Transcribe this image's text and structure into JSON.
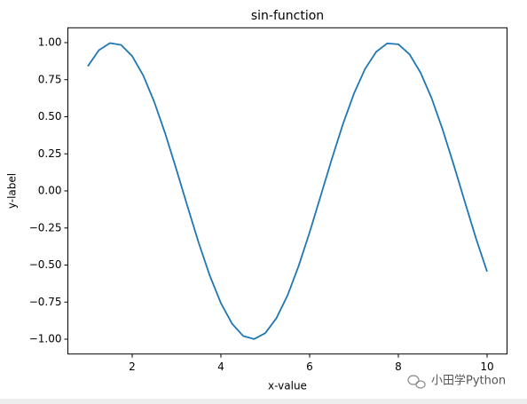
{
  "chart_data": {
    "type": "line",
    "title": "sin-function",
    "x_label": "x-value",
    "y_label": "y-label",
    "x": [
      1,
      1.25,
      1.5,
      1.75,
      2,
      2.25,
      2.5,
      2.75,
      3,
      3.25,
      3.5,
      3.75,
      4,
      4.25,
      4.5,
      4.75,
      5,
      5.25,
      5.5,
      5.75,
      6,
      6.25,
      6.5,
      6.75,
      7,
      7.25,
      7.5,
      7.75,
      8,
      8.25,
      8.5,
      8.75,
      9,
      9.25,
      9.5,
      9.75,
      10
    ],
    "series": [
      {
        "color": "#1f77b4",
        "values": [
          0.841,
          0.949,
          0.997,
          0.984,
          0.909,
          0.778,
          0.598,
          0.382,
          0.141,
          -0.108,
          -0.351,
          -0.572,
          -0.757,
          -0.895,
          -0.978,
          -0.999,
          -0.959,
          -0.859,
          -0.706,
          -0.508,
          -0.279,
          -0.033,
          0.215,
          0.45,
          0.657,
          0.823,
          0.938,
          0.995,
          0.989,
          0.922,
          0.798,
          0.625,
          0.412,
          0.174,
          -0.075,
          -0.32,
          -0.544
        ]
      }
    ],
    "xlim": [
      0.55,
      10.45
    ],
    "ylim": [
      -1.1,
      1.1
    ],
    "xticks": [
      2,
      4,
      6,
      8,
      10
    ],
    "yticks": [
      {
        "value": -1,
        "label": "−1.00"
      },
      {
        "value": -0.75,
        "label": "−0.75"
      },
      {
        "value": -0.5,
        "label": "−0.50"
      },
      {
        "value": -0.25,
        "label": "−0.25"
      },
      {
        "value": 0,
        "label": "0.00"
      },
      {
        "value": 0.25,
        "label": "0.25"
      },
      {
        "value": 0.5,
        "label": "0.50"
      },
      {
        "value": 0.75,
        "label": "0.75"
      },
      {
        "value": 1,
        "label": "1.00"
      }
    ],
    "grid": false
  },
  "watermark": "小田学Python"
}
